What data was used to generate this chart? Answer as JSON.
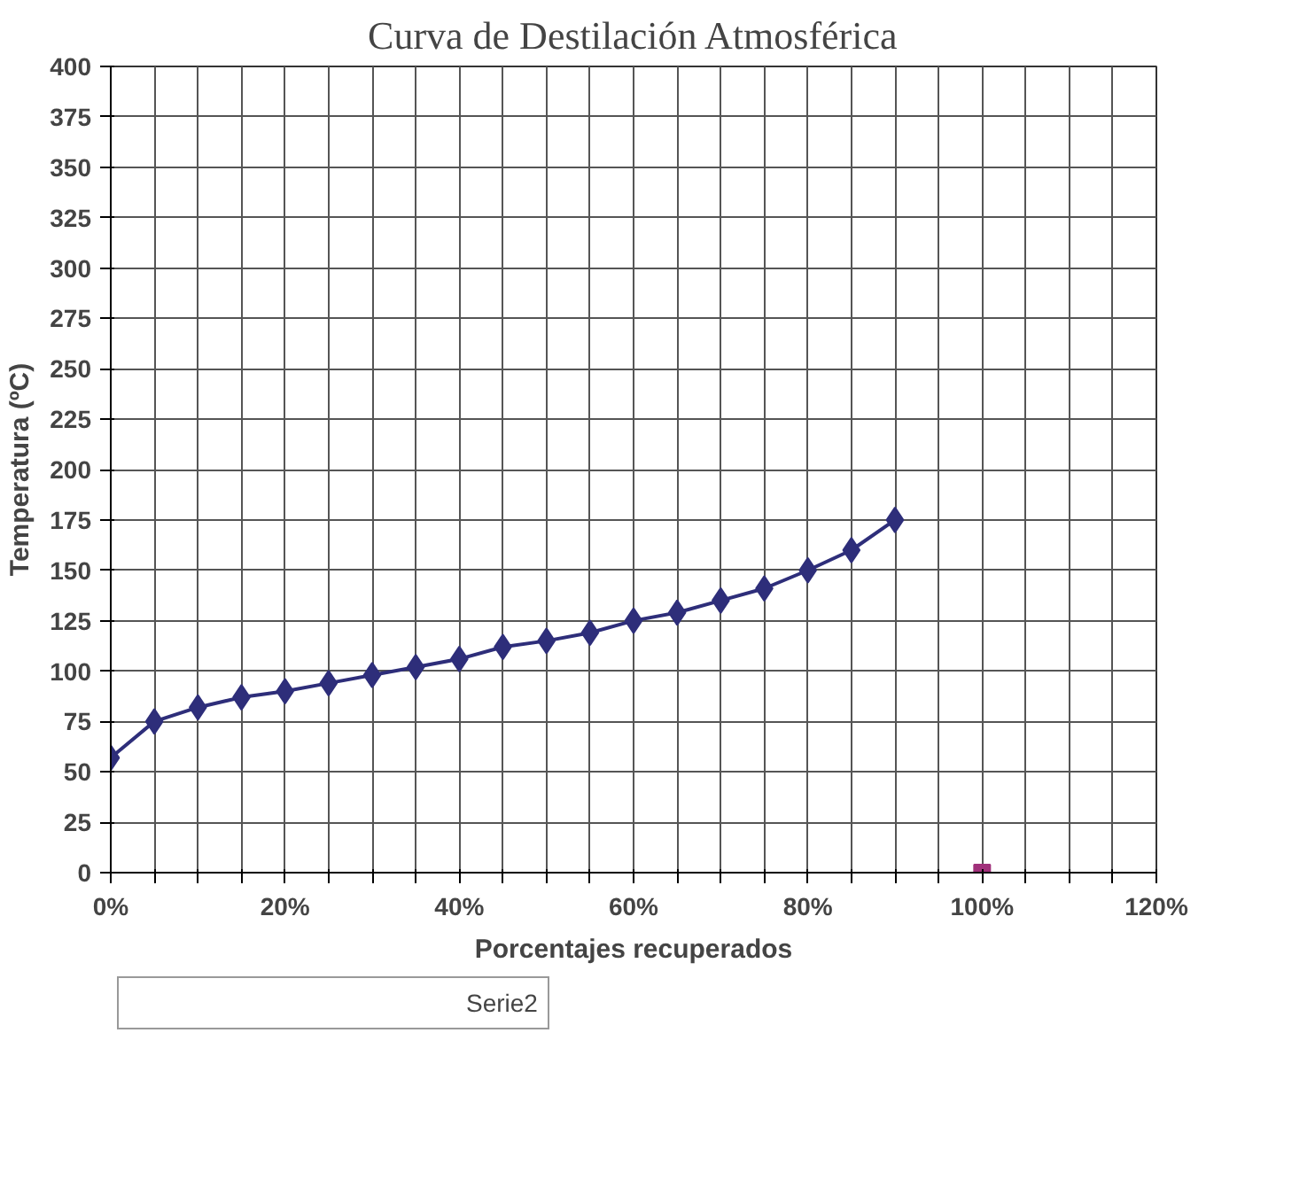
{
  "chart_data": {
    "type": "line",
    "title": "Curva de Destilación Atmosférica",
    "xlabel": "Porcentajes recuperados",
    "ylabel": "Temperatura (ºC)",
    "xlim": [
      0,
      120
    ],
    "ylim": [
      0,
      400
    ],
    "xticks": [
      {
        "value": 0,
        "label": "0%"
      },
      {
        "value": 5,
        "label": null
      },
      {
        "value": 10,
        "label": null
      },
      {
        "value": 15,
        "label": null
      },
      {
        "value": 20,
        "label": "20%"
      },
      {
        "value": 25,
        "label": null
      },
      {
        "value": 30,
        "label": null
      },
      {
        "value": 35,
        "label": null
      },
      {
        "value": 40,
        "label": "40%"
      },
      {
        "value": 45,
        "label": null
      },
      {
        "value": 50,
        "label": null
      },
      {
        "value": 55,
        "label": null
      },
      {
        "value": 60,
        "label": "60%"
      },
      {
        "value": 65,
        "label": null
      },
      {
        "value": 70,
        "label": null
      },
      {
        "value": 75,
        "label": null
      },
      {
        "value": 80,
        "label": "80%"
      },
      {
        "value": 85,
        "label": null
      },
      {
        "value": 90,
        "label": null
      },
      {
        "value": 95,
        "label": null
      },
      {
        "value": 100,
        "label": "100%"
      },
      {
        "value": 105,
        "label": null
      },
      {
        "value": 110,
        "label": null
      },
      {
        "value": 115,
        "label": null
      },
      {
        "value": 120,
        "label": "120%"
      }
    ],
    "yticks": [
      0,
      25,
      50,
      75,
      100,
      125,
      150,
      175,
      200,
      225,
      250,
      275,
      300,
      325,
      350,
      375,
      400
    ],
    "grid": true,
    "legend": "bottom left",
    "series": [
      {
        "color": "#2e2e7a",
        "marker": "diamond",
        "x": [
          0,
          5,
          10,
          15,
          20,
          25,
          30,
          35,
          40,
          45,
          50,
          55,
          60,
          65,
          70,
          75,
          80,
          85,
          90
        ],
        "values": [
          57,
          75,
          82,
          87,
          90,
          94,
          98,
          102,
          106,
          112,
          115,
          119,
          125,
          129,
          135,
          141,
          150,
          160,
          175
        ]
      },
      {
        "type": "scatter",
        "name": "Serie2",
        "color": "#a0307a",
        "marker": "square",
        "x": [
          100
        ],
        "values": [
          0
        ]
      }
    ]
  }
}
